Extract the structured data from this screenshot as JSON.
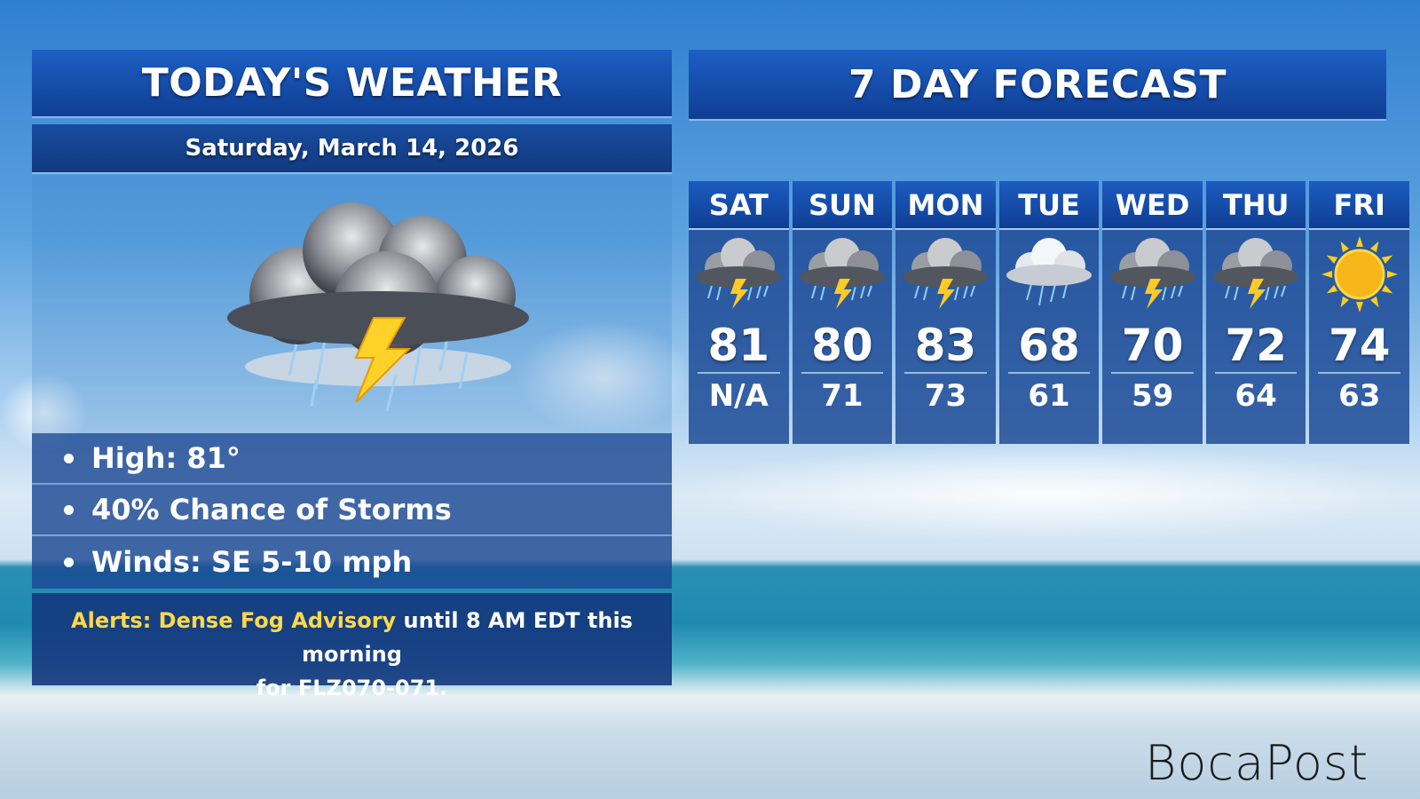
{
  "today": {
    "title": "TODAY'S WEATHER",
    "date": "Saturday, March 14, 2026",
    "icon": "thunderstorm-icon",
    "bullets": [
      "High: 81°",
      "40% Chance of Storms",
      "Winds: SE 5-10 mph"
    ],
    "alert": {
      "label": "Alerts: Dense Fog Advisory",
      "text": " until 8 AM EDT this morning",
      "text2": "for FLZ070-071."
    }
  },
  "forecast": {
    "title": "7 DAY FORECAST",
    "days": [
      {
        "day": "SAT",
        "icon": "thunderstorm-icon",
        "high": "81",
        "low": "N/A"
      },
      {
        "day": "SUN",
        "icon": "thunderstorm-icon",
        "high": "80",
        "low": "71"
      },
      {
        "day": "MON",
        "icon": "thunderstorm-icon",
        "high": "83",
        "low": "73"
      },
      {
        "day": "TUE",
        "icon": "rain-cloud-icon",
        "high": "68",
        "low": "61"
      },
      {
        "day": "WED",
        "icon": "thunderstorm-icon",
        "high": "70",
        "low": "59"
      },
      {
        "day": "THU",
        "icon": "thunderstorm-icon",
        "high": "72",
        "low": "64"
      },
      {
        "day": "FRI",
        "icon": "sun-icon",
        "high": "74",
        "low": "63"
      }
    ]
  },
  "logo": "BocaPost"
}
